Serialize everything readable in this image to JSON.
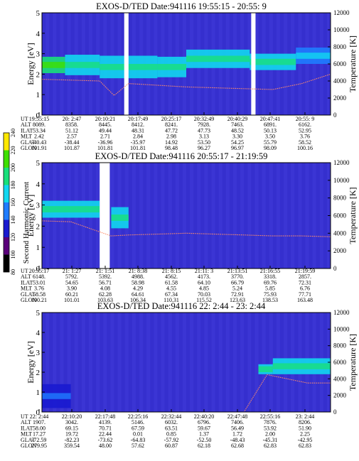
{
  "chart_data": [
    {
      "type": "heatmap",
      "title": "EXOS-D/TED   Date:941116  19:55:15 - 20:55: 9",
      "ylabel": "Energy [eV]",
      "ylabel_right": "Temperature [K]",
      "ylim": [
        0,
        5
      ],
      "ylim_right": [
        0,
        12000
      ],
      "y_ticks": [
        "0",
        "1",
        "2",
        "3",
        "4",
        "5"
      ],
      "y_ticks_right": [
        "0",
        "2000",
        "4000",
        "6000",
        "8000",
        "10000",
        "12000"
      ],
      "row_labels": [
        "UT",
        "ALT",
        "ILAT",
        "MLT",
        "GLAT",
        "GLON"
      ],
      "columns": [
        [
          "19:55:15",
          "8089.",
          "53.34",
          "2.42",
          "-40.43",
          "101.91"
        ],
        [
          "20: 2:47",
          "8358.",
          "51.12",
          "2.57",
          "-38.44",
          "101.87"
        ],
        [
          "20:10:21",
          "8445.",
          "49.44",
          "2.71",
          "-36.96",
          "101.81"
        ],
        [
          "20:17:49",
          "8412.",
          "48.31",
          "2.84",
          "-35.97",
          "101.81"
        ],
        [
          "20:25:17",
          "8241.",
          "47.72",
          "2.98",
          "14.92",
          "98.48"
        ],
        [
          "20:32:49",
          "7928.",
          "47.73",
          "3.13",
          "53.50",
          "96.27"
        ],
        [
          "20:40:29",
          "7463.",
          "48.52",
          "3.30",
          "54.25",
          "96.97"
        ],
        [
          "20:47:41",
          "6891.",
          "50.13",
          "3.50",
          "55.79",
          "98.09"
        ],
        [
          "20:55: 9",
          "6162.",
          "52.95",
          "3.76",
          "58.52",
          "100.16"
        ]
      ],
      "bands": [
        {
          "x0": 0.0,
          "x1": 0.08,
          "y0": 2.05,
          "y1": 2.85,
          "level": 185
        },
        {
          "x0": 0.08,
          "x1": 0.2,
          "y0": 1.95,
          "y1": 2.95,
          "level": 175
        },
        {
          "x0": 0.2,
          "x1": 0.4,
          "y0": 1.8,
          "y1": 2.9,
          "level": 170
        },
        {
          "x0": 0.4,
          "x1": 0.5,
          "y0": 1.85,
          "y1": 2.85,
          "level": 160
        },
        {
          "x0": 0.5,
          "x1": 0.72,
          "y0": 2.3,
          "y1": 3.2,
          "level": 175
        },
        {
          "x0": 0.72,
          "x1": 0.88,
          "y0": 2.2,
          "y1": 3.0,
          "level": 170
        },
        {
          "x0": 0.88,
          "x1": 1.0,
          "y0": 2.5,
          "y1": 3.3,
          "level": 155
        }
      ],
      "gaps": [
        [
          0.285,
          0.3
        ],
        [
          0.725,
          0.74
        ]
      ],
      "temperature": {
        "x": [
          0.0,
          0.1,
          0.2,
          0.25,
          0.3,
          0.4,
          0.5,
          0.6,
          0.7,
          0.8,
          0.9,
          1.0
        ],
        "y": [
          4200,
          4100,
          4000,
          2300,
          3700,
          3500,
          3300,
          3200,
          3100,
          3000,
          3700,
          4800
        ]
      }
    },
    {
      "type": "heatmap",
      "title": "EXOS-D/TED   Date:941116  20:55:17 - 21:19:59",
      "ylabel": "Energy [eV]",
      "ylabel_right": "Temperature [K]",
      "ylim": [
        0,
        5
      ],
      "ylim_right": [
        0,
        12000
      ],
      "y_ticks": [
        "0",
        "1",
        "2",
        "3",
        "4",
        "5"
      ],
      "y_ticks_right": [
        "0",
        "2000",
        "4000",
        "6000",
        "8000",
        "10000",
        "12000"
      ],
      "row_labels": [
        "UT",
        "ALT",
        "ILAT",
        "MLT",
        "GLAT",
        "GLON"
      ],
      "columns": [
        [
          "20:55:17",
          "6148.",
          "53.01",
          "3.76",
          "58.58",
          "100.21"
        ],
        [
          "21: 1:27",
          "5792.",
          "54.65",
          "3.90",
          "60.21",
          "101.01"
        ],
        [
          "21: 1:51",
          "5392.",
          "56.71",
          "4.08",
          "62.28",
          "103.63"
        ],
        [
          "21: 8:38",
          "4988.",
          "58.98",
          "4.29",
          "64.61",
          "106.34"
        ],
        [
          "21: 8:15",
          "4562.",
          "61.58",
          "4.55",
          "67.34",
          "110.31"
        ],
        [
          "21:11: 3",
          "4173.",
          "64.10",
          "4.85",
          "70.03",
          "115.52"
        ],
        [
          "21:13:51",
          "3770.",
          "66.79",
          "5.24",
          "72.91",
          "123.63"
        ],
        [
          "21:16:55",
          "3318.",
          "69.76",
          "5.85",
          "75.93",
          "138.53"
        ],
        [
          "21:19:59",
          "2857.",
          "72.31",
          "6.76",
          "77.71",
          "163.48"
        ]
      ],
      "bands": [
        {
          "x0": 0.0,
          "x1": 0.2,
          "y0": 2.4,
          "y1": 3.2,
          "level": 160
        },
        {
          "x0": 0.24,
          "x1": 0.3,
          "y0": 1.9,
          "y1": 2.9,
          "level": 175
        }
      ],
      "gaps": [
        [
          0.2,
          0.235
        ]
      ],
      "temperature": {
        "x": [
          0.0,
          0.1,
          0.24,
          0.3,
          0.4,
          0.5,
          0.6,
          0.7,
          0.8,
          0.9,
          1.0
        ],
        "y": [
          5400,
          5300,
          3700,
          3800,
          3900,
          4000,
          3900,
          3800,
          3700,
          3700,
          3600
        ]
      },
      "colorbar": {
        "label": "Second Harmonic Current",
        "ticks": [
          "80",
          "100",
          "120",
          "140",
          "160",
          "180",
          "200",
          "220",
          "240"
        ],
        "range": [
          80,
          240
        ]
      }
    },
    {
      "type": "heatmap",
      "title": "EXOS-D/TED   Date:941116  22: 2:44 - 23: 2:44",
      "ylabel": "Energy [eV]",
      "ylabel_right": "Temperature [K]",
      "ylim": [
        0,
        5
      ],
      "ylim_right": [
        0,
        12000
      ],
      "y_ticks": [
        "0",
        "1",
        "2",
        "3",
        "4",
        "5"
      ],
      "y_ticks_right": [
        "0",
        "2000",
        "4000",
        "6000",
        "8000",
        "10000",
        "12000"
      ],
      "row_labels": [
        "UT",
        "ALT",
        "ILAT",
        "MLT",
        "GLAT",
        "GLON"
      ],
      "columns": [
        [
          "22: 2:44",
          "1907.",
          "58.00",
          "17.27",
          "-72.59",
          "279.95"
        ],
        [
          "22:10:20",
          "3042.",
          "69.15",
          "19.72",
          "-82.23",
          "359.54"
        ],
        [
          "22:17:48",
          "4139.",
          "70.71",
          "22.44",
          "-73.62",
          "48.00"
        ],
        [
          "22:25:16",
          "5146.",
          "67.59",
          "0.01",
          "-64.83",
          "57.62"
        ],
        [
          "22:32:44",
          "6032.",
          "63.51",
          "0.85",
          "-57.92",
          "60.87"
        ],
        [
          "22:40:20",
          "6796.",
          "59.67",
          "1.37",
          "-52.50",
          "62.18"
        ],
        [
          "22:47:48",
          "7406.",
          "56.49",
          "1.72",
          "-48.43",
          "62.68"
        ],
        [
          "22:55:16",
          "7876.",
          "53.92",
          "2.00",
          "-45.31",
          "62.83"
        ],
        [
          "23: 2:44",
          "8206.",
          "51.90",
          "2.25",
          "-42.95",
          "62.83"
        ]
      ],
      "bands": [
        {
          "x0": 0.0,
          "x1": 0.1,
          "y0": 0.2,
          "y1": 1.4,
          "level": 130
        },
        {
          "x0": 0.75,
          "x1": 0.8,
          "y0": 1.9,
          "y1": 2.4,
          "level": 160
        },
        {
          "x0": 0.8,
          "x1": 1.0,
          "y0": 1.9,
          "y1": 2.7,
          "level": 175
        }
      ],
      "gaps": [],
      "temperature": {
        "x": [
          0.0,
          0.7,
          0.78,
          0.85,
          0.92,
          1.0
        ],
        "y": [
          0,
          0,
          4500,
          4000,
          3500,
          3500
        ]
      }
    }
  ]
}
